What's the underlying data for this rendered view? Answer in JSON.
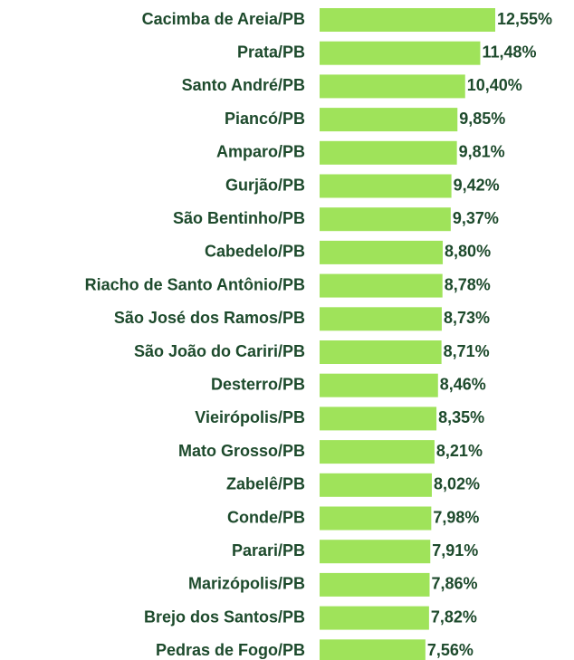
{
  "chart_data": {
    "type": "bar",
    "orientation": "horizontal",
    "color": "#9fe35a",
    "categories": [
      "Cacimba de Areia/PB",
      "Prata/PB",
      "Santo André/PB",
      "Piancó/PB",
      "Amparo/PB",
      "Gurjão/PB",
      "São Bentinho/PB",
      "Cabedelo/PB",
      "Riacho de Santo Antônio/PB",
      "São José dos Ramos/PB",
      "São João do Cariri/PB",
      "Desterro/PB",
      "Vieirópolis/PB",
      "Mato Grosso/PB",
      "Zabelê/PB",
      "Conde/PB",
      "Parari/PB",
      "Marizópolis/PB",
      "Brejo dos Santos/PB",
      "Pedras de Fogo/PB"
    ],
    "values": [
      12.55,
      11.48,
      10.4,
      9.85,
      9.81,
      9.42,
      9.37,
      8.8,
      8.78,
      8.73,
      8.71,
      8.46,
      8.35,
      8.21,
      8.02,
      7.98,
      7.91,
      7.86,
      7.82,
      7.56
    ],
    "value_labels": [
      "12,55%",
      "11,48%",
      "10,40%",
      "9,85%",
      "9,81%",
      "9,42%",
      "9,37%",
      "8,80%",
      "8,78%",
      "8,73%",
      "8,71%",
      "8,46%",
      "8,35%",
      "8,21%",
      "8,02%",
      "7,98%",
      "7,91%",
      "7,86%",
      "7,82%",
      "7,56%"
    ]
  }
}
